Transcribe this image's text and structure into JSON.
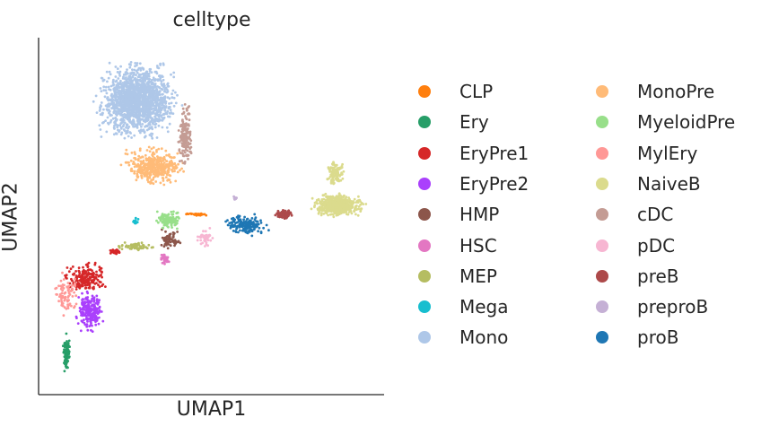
{
  "chart_data": {
    "type": "scatter",
    "title": "celltype",
    "xlabel": "UMAP1",
    "ylabel": "UMAP2",
    "xlim": [
      0,
      100
    ],
    "ylim": [
      0,
      100
    ],
    "grid": false,
    "legend_position": "right",
    "xticks": [],
    "yticks": [],
    "series": [
      {
        "name": "CLP",
        "color": "#ff7f0e",
        "clusters": [
          {
            "x": [
              41,
              50
            ],
            "y": [
              50,
              51
            ],
            "n": 28
          }
        ]
      },
      {
        "name": "Ery",
        "color": "#279e68",
        "clusters": [
          {
            "x": [
              6.5,
              9.5
            ],
            "y": [
              5,
              18
            ],
            "n": 90
          }
        ]
      },
      {
        "name": "EryPre1",
        "color": "#d62728",
        "clusters": [
          {
            "x": [
              6,
              21
            ],
            "y": [
              28,
              38
            ],
            "n": 200
          },
          {
            "x": [
              20,
              24
            ],
            "y": [
              39,
              41
            ],
            "n": 30
          }
        ]
      },
      {
        "name": "EryPre2",
        "color": "#aa40fc",
        "clusters": [
          {
            "x": [
              10,
              20
            ],
            "y": [
              17,
              30
            ],
            "n": 220
          }
        ]
      },
      {
        "name": "HMP",
        "color": "#8c564b",
        "clusters": [
          {
            "x": [
              34,
              42
            ],
            "y": [
              40,
              47
            ],
            "n": 60
          }
        ]
      },
      {
        "name": "HSC",
        "color": "#e377c2",
        "clusters": [
          {
            "x": [
              35,
              38
            ],
            "y": [
              36,
              40
            ],
            "n": 30
          }
        ]
      },
      {
        "name": "MEP",
        "color": "#b5bd61",
        "clusters": [
          {
            "x": [
              22,
              34
            ],
            "y": [
              40,
              43
            ],
            "n": 70
          }
        ]
      },
      {
        "name": "Mega",
        "color": "#17becf",
        "clusters": [
          {
            "x": [
              27,
              29
            ],
            "y": [
              47,
              50
            ],
            "n": 12
          }
        ]
      },
      {
        "name": "Mono",
        "color": "#aec7e8",
        "clusters": [
          {
            "x": [
              15,
              42
            ],
            "y": [
              70,
              95
            ],
            "n": 1600
          }
        ]
      },
      {
        "name": "MonoPre",
        "color": "#ffbb78",
        "clusters": [
          {
            "x": [
              23,
              44
            ],
            "y": [
              58,
              70
            ],
            "n": 420
          }
        ]
      },
      {
        "name": "MyeloidPre",
        "color": "#98df8a",
        "clusters": [
          {
            "x": [
              33,
              42
            ],
            "y": [
              46,
              52
            ],
            "n": 120
          }
        ]
      },
      {
        "name": "MylEry",
        "color": "#ff9896",
        "clusters": [
          {
            "x": [
              4,
              12
            ],
            "y": [
              21,
              35
            ],
            "n": 80
          }
        ]
      },
      {
        "name": "NaiveB",
        "color": "#dbdb8d",
        "clusters": [
          {
            "x": [
              78,
              95
            ],
            "y": [
              49,
              57
            ],
            "n": 550
          },
          {
            "x": [
              83,
              89
            ],
            "y": [
              58,
              66
            ],
            "n": 120
          }
        ]
      },
      {
        "name": "cDC",
        "color": "#c49c94",
        "clusters": [
          {
            "x": [
              40,
              45
            ],
            "y": [
              62,
              82
            ],
            "n": 170
          }
        ]
      },
      {
        "name": "pDC",
        "color": "#f7b6d2",
        "clusters": [
          {
            "x": [
              45,
              51
            ],
            "y": [
              41,
              47
            ],
            "n": 45
          }
        ]
      },
      {
        "name": "preB",
        "color": "#ad494a",
        "clusters": [
          {
            "x": [
              68,
              74
            ],
            "y": [
              49,
              52
            ],
            "n": 110
          }
        ]
      },
      {
        "name": "preproB",
        "color": "#c5b0d5",
        "clusters": [
          {
            "x": [
              56,
              58
            ],
            "y": [
              54,
              56
            ],
            "n": 14
          }
        ]
      },
      {
        "name": "proB",
        "color": "#1f77b4",
        "clusters": [
          {
            "x": [
              53,
              67
            ],
            "y": [
              44,
              51
            ],
            "n": 170
          }
        ]
      }
    ]
  }
}
